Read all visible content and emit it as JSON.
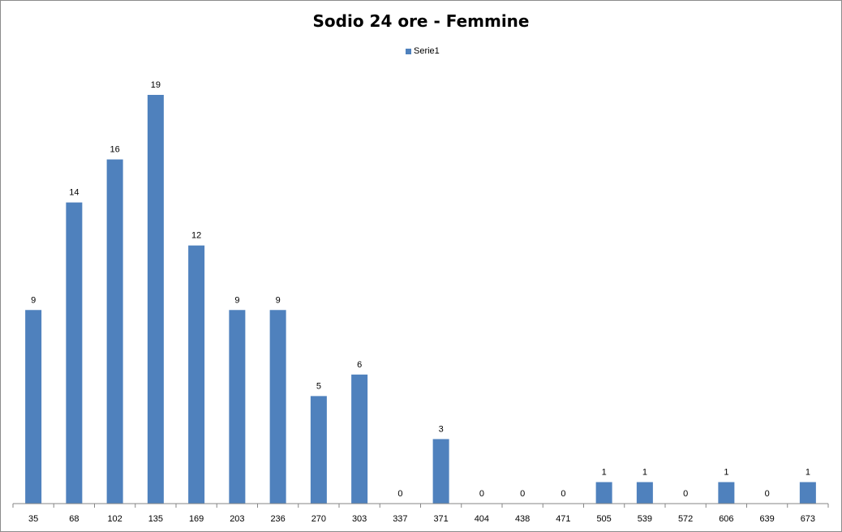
{
  "chart_data": {
    "type": "bar",
    "title": "Sodio 24 ore - Femmine",
    "categories": [
      "35",
      "68",
      "102",
      "135",
      "169",
      "203",
      "236",
      "270",
      "303",
      "337",
      "371",
      "404",
      "438",
      "471",
      "505",
      "539",
      "572",
      "606",
      "639",
      "673"
    ],
    "series": [
      {
        "name": "Serie1",
        "values": [
          9,
          14,
          16,
          19,
          12,
          9,
          9,
          5,
          6,
          0,
          3,
          0,
          0,
          0,
          1,
          1,
          0,
          1,
          0,
          1
        ]
      }
    ],
    "ylim": [
      0,
      19
    ],
    "grid": false,
    "legend": "top-center",
    "data_labels": true,
    "bar_color": "#4f81bd"
  }
}
